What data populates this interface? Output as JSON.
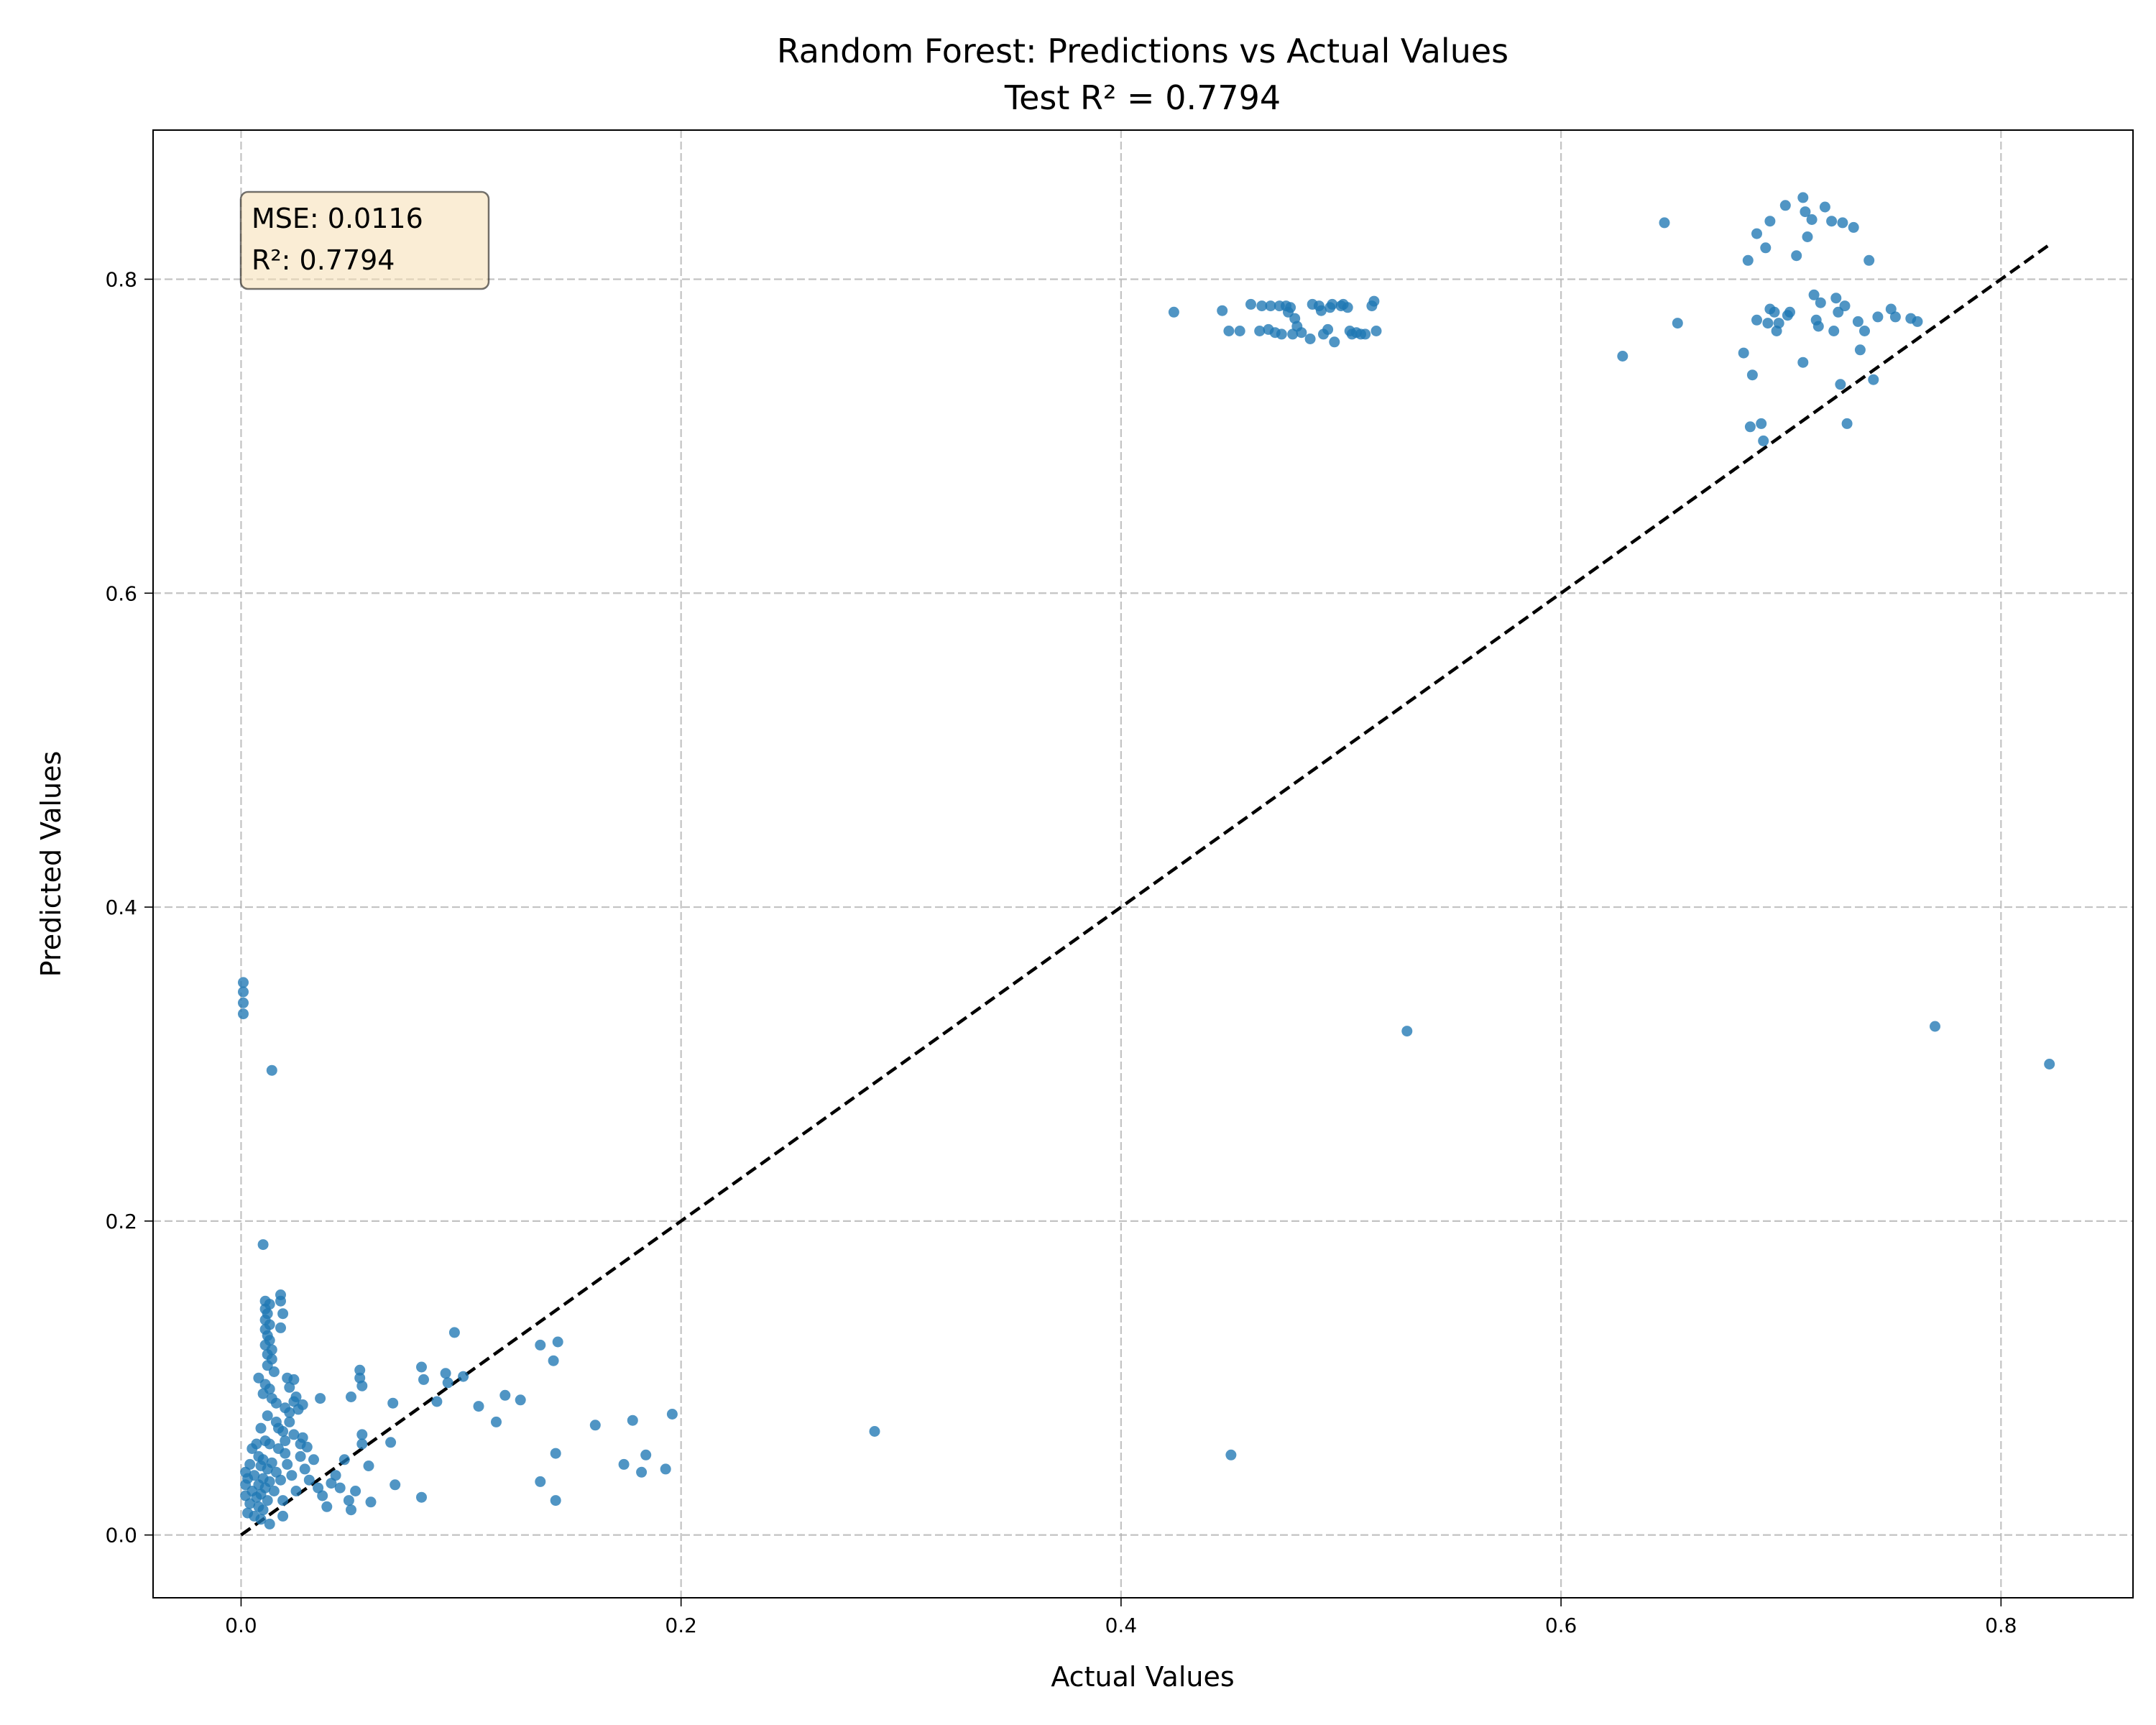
{
  "chart_data": {
    "type": "scatter",
    "title": "Random Forest: Predictions vs Actual Values",
    "subtitle": "Test R² = 0.7794",
    "xlabel": "Actual Values",
    "ylabel": "Predicted Values",
    "xlim": [
      -0.04,
      0.86
    ],
    "ylim": [
      -0.04,
      0.895
    ],
    "x_ticks": [
      "0.0",
      "0.2",
      "0.4",
      "0.6",
      "0.8"
    ],
    "y_ticks": [
      "0.0",
      "0.2",
      "0.4",
      "0.6",
      "0.8"
    ],
    "grid": true,
    "point_color": "#1f77b4",
    "reference_line": {
      "style": "dashed",
      "color": "#000000",
      "from": [
        0.0,
        0.0
      ],
      "to": [
        0.822,
        0.822
      ]
    },
    "annotation": {
      "lines": [
        "MSE: 0.0116",
        "R²: 0.7794"
      ],
      "position": "top-left",
      "background": "#f5deb3"
    },
    "series": [
      {
        "points": [
          [
            0.001,
            0.352
          ],
          [
            0.001,
            0.346
          ],
          [
            0.001,
            0.339
          ],
          [
            0.001,
            0.332
          ],
          [
            0.014,
            0.296
          ],
          [
            0.01,
            0.185
          ],
          [
            0.018,
            0.153
          ],
          [
            0.018,
            0.149
          ],
          [
            0.011,
            0.149
          ],
          [
            0.013,
            0.147
          ],
          [
            0.011,
            0.144
          ],
          [
            0.012,
            0.141
          ],
          [
            0.019,
            0.141
          ],
          [
            0.011,
            0.137
          ],
          [
            0.013,
            0.134
          ],
          [
            0.011,
            0.131
          ],
          [
            0.018,
            0.132
          ],
          [
            0.012,
            0.127
          ],
          [
            0.013,
            0.124
          ],
          [
            0.011,
            0.121
          ],
          [
            0.014,
            0.118
          ],
          [
            0.012,
            0.115
          ],
          [
            0.014,
            0.112
          ],
          [
            0.012,
            0.108
          ],
          [
            0.015,
            0.104
          ],
          [
            0.008,
            0.1
          ],
          [
            0.011,
            0.096
          ],
          [
            0.013,
            0.093
          ],
          [
            0.01,
            0.09
          ],
          [
            0.014,
            0.087
          ],
          [
            0.016,
            0.084
          ],
          [
            0.02,
            0.081
          ],
          [
            0.022,
            0.078
          ],
          [
            0.024,
            0.085
          ],
          [
            0.026,
            0.08
          ],
          [
            0.021,
            0.1
          ],
          [
            0.024,
            0.099
          ],
          [
            0.022,
            0.094
          ],
          [
            0.012,
            0.076
          ],
          [
            0.016,
            0.072
          ],
          [
            0.009,
            0.068
          ],
          [
            0.019,
            0.066
          ],
          [
            0.024,
            0.064
          ],
          [
            0.028,
            0.062
          ],
          [
            0.011,
            0.06
          ],
          [
            0.013,
            0.058
          ],
          [
            0.017,
            0.055
          ],
          [
            0.02,
            0.052
          ],
          [
            0.008,
            0.05
          ],
          [
            0.01,
            0.048
          ],
          [
            0.014,
            0.046
          ],
          [
            0.009,
            0.044
          ],
          [
            0.012,
            0.042
          ],
          [
            0.016,
            0.04
          ],
          [
            0.006,
            0.038
          ],
          [
            0.01,
            0.036
          ],
          [
            0.013,
            0.034
          ],
          [
            0.008,
            0.032
          ],
          [
            0.011,
            0.03
          ],
          [
            0.005,
            0.028
          ],
          [
            0.009,
            0.026
          ],
          [
            0.007,
            0.024
          ],
          [
            0.012,
            0.022
          ],
          [
            0.004,
            0.02
          ],
          [
            0.008,
            0.018
          ],
          [
            0.01,
            0.016
          ],
          [
            0.003,
            0.014
          ],
          [
            0.006,
            0.012
          ],
          [
            0.009,
            0.01
          ],
          [
            0.002,
            0.04
          ],
          [
            0.002,
            0.032
          ],
          [
            0.002,
            0.025
          ],
          [
            0.003,
            0.036
          ],
          [
            0.004,
            0.045
          ],
          [
            0.005,
            0.055
          ],
          [
            0.007,
            0.058
          ],
          [
            0.015,
            0.028
          ],
          [
            0.018,
            0.035
          ],
          [
            0.019,
            0.022
          ],
          [
            0.021,
            0.045
          ],
          [
            0.023,
            0.038
          ],
          [
            0.025,
            0.028
          ],
          [
            0.027,
            0.05
          ],
          [
            0.029,
            0.042
          ],
          [
            0.031,
            0.035
          ],
          [
            0.033,
            0.048
          ],
          [
            0.035,
            0.03
          ],
          [
            0.037,
            0.025
          ],
          [
            0.039,
            0.018
          ],
          [
            0.041,
            0.033
          ],
          [
            0.043,
            0.038
          ],
          [
            0.045,
            0.03
          ],
          [
            0.047,
            0.048
          ],
          [
            0.049,
            0.022
          ],
          [
            0.05,
            0.016
          ],
          [
            0.052,
            0.028
          ],
          [
            0.019,
            0.012
          ],
          [
            0.013,
            0.007
          ],
          [
            0.02,
            0.06
          ],
          [
            0.017,
            0.068
          ],
          [
            0.022,
            0.072
          ],
          [
            0.025,
            0.088
          ],
          [
            0.028,
            0.083
          ],
          [
            0.03,
            0.056
          ],
          [
            0.027,
            0.058
          ],
          [
            0.036,
            0.087
          ],
          [
            0.05,
            0.088
          ],
          [
            0.054,
            0.105
          ],
          [
            0.054,
            0.1
          ],
          [
            0.055,
            0.095
          ],
          [
            0.055,
            0.064
          ],
          [
            0.055,
            0.058
          ],
          [
            0.058,
            0.044
          ],
          [
            0.059,
            0.021
          ],
          [
            0.069,
            0.084
          ],
          [
            0.068,
            0.059
          ],
          [
            0.07,
            0.032
          ],
          [
            0.082,
            0.107
          ],
          [
            0.083,
            0.099
          ],
          [
            0.082,
            0.024
          ],
          [
            0.089,
            0.085
          ],
          [
            0.093,
            0.103
          ],
          [
            0.094,
            0.097
          ],
          [
            0.097,
            0.129
          ],
          [
            0.101,
            0.101
          ],
          [
            0.108,
            0.082
          ],
          [
            0.116,
            0.072
          ],
          [
            0.12,
            0.089
          ],
          [
            0.127,
            0.086
          ],
          [
            0.136,
            0.121
          ],
          [
            0.136,
            0.034
          ],
          [
            0.142,
            0.111
          ],
          [
            0.144,
            0.123
          ],
          [
            0.143,
            0.052
          ],
          [
            0.143,
            0.022
          ],
          [
            0.161,
            0.07
          ],
          [
            0.174,
            0.045
          ],
          [
            0.178,
            0.073
          ],
          [
            0.182,
            0.04
          ],
          [
            0.184,
            0.051
          ],
          [
            0.193,
            0.042
          ],
          [
            0.196,
            0.077
          ],
          [
            0.288,
            0.066
          ],
          [
            0.45,
            0.051
          ],
          [
            0.53,
            0.321
          ],
          [
            0.77,
            0.324
          ],
          [
            0.822,
            0.3
          ],
          [
            0.424,
            0.779
          ],
          [
            0.446,
            0.78
          ],
          [
            0.449,
            0.767
          ],
          [
            0.454,
            0.767
          ],
          [
            0.459,
            0.784
          ],
          [
            0.463,
            0.767
          ],
          [
            0.464,
            0.783
          ],
          [
            0.467,
            0.768
          ],
          [
            0.468,
            0.783
          ],
          [
            0.47,
            0.766
          ],
          [
            0.472,
            0.783
          ],
          [
            0.473,
            0.765
          ],
          [
            0.475,
            0.783
          ],
          [
            0.476,
            0.779
          ],
          [
            0.477,
            0.782
          ],
          [
            0.478,
            0.765
          ],
          [
            0.479,
            0.775
          ],
          [
            0.48,
            0.77
          ],
          [
            0.482,
            0.766
          ],
          [
            0.486,
            0.762
          ],
          [
            0.487,
            0.784
          ],
          [
            0.49,
            0.783
          ],
          [
            0.491,
            0.78
          ],
          [
            0.492,
            0.765
          ],
          [
            0.494,
            0.768
          ],
          [
            0.495,
            0.782
          ],
          [
            0.496,
            0.784
          ],
          [
            0.497,
            0.76
          ],
          [
            0.5,
            0.783
          ],
          [
            0.501,
            0.784
          ],
          [
            0.503,
            0.782
          ],
          [
            0.504,
            0.767
          ],
          [
            0.505,
            0.765
          ],
          [
            0.507,
            0.766
          ],
          [
            0.509,
            0.765
          ],
          [
            0.511,
            0.765
          ],
          [
            0.514,
            0.783
          ],
          [
            0.515,
            0.786
          ],
          [
            0.516,
            0.767
          ],
          [
            0.628,
            0.751
          ],
          [
            0.647,
            0.836
          ],
          [
            0.653,
            0.772
          ],
          [
            0.683,
            0.753
          ],
          [
            0.685,
            0.812
          ],
          [
            0.686,
            0.706
          ],
          [
            0.687,
            0.739
          ],
          [
            0.689,
            0.829
          ],
          [
            0.689,
            0.774
          ],
          [
            0.691,
            0.708
          ],
          [
            0.692,
            0.697
          ],
          [
            0.693,
            0.82
          ],
          [
            0.694,
            0.772
          ],
          [
            0.695,
            0.837
          ],
          [
            0.695,
            0.781
          ],
          [
            0.697,
            0.779
          ],
          [
            0.698,
            0.767
          ],
          [
            0.699,
            0.772
          ],
          [
            0.702,
            0.847
          ],
          [
            0.703,
            0.777
          ],
          [
            0.704,
            0.779
          ],
          [
            0.707,
            0.815
          ],
          [
            0.71,
            0.852
          ],
          [
            0.71,
            0.747
          ],
          [
            0.711,
            0.843
          ],
          [
            0.712,
            0.827
          ],
          [
            0.714,
            0.838
          ],
          [
            0.715,
            0.79
          ],
          [
            0.716,
            0.774
          ],
          [
            0.717,
            0.77
          ],
          [
            0.718,
            0.785
          ],
          [
            0.72,
            0.846
          ],
          [
            0.723,
            0.837
          ],
          [
            0.724,
            0.767
          ],
          [
            0.725,
            0.788
          ],
          [
            0.726,
            0.779
          ],
          [
            0.727,
            0.733
          ],
          [
            0.728,
            0.836
          ],
          [
            0.729,
            0.783
          ],
          [
            0.73,
            0.708
          ],
          [
            0.733,
            0.833
          ],
          [
            0.735,
            0.773
          ],
          [
            0.736,
            0.755
          ],
          [
            0.738,
            0.767
          ],
          [
            0.74,
            0.812
          ],
          [
            0.742,
            0.736
          ],
          [
            0.744,
            0.776
          ],
          [
            0.75,
            0.781
          ],
          [
            0.752,
            0.776
          ],
          [
            0.759,
            0.775
          ],
          [
            0.762,
            0.773
          ]
        ]
      }
    ]
  }
}
